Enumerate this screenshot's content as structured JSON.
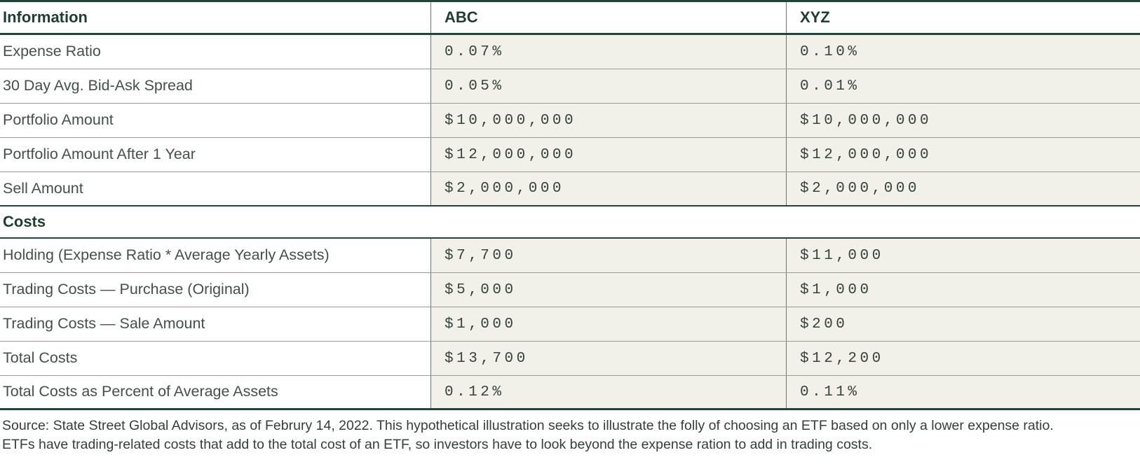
{
  "table": {
    "columns": [
      "Information",
      "ABC",
      "XYZ"
    ],
    "info_rows": [
      {
        "label": "Expense Ratio",
        "abc": "0.07%",
        "xyz": "0.10%"
      },
      {
        "label": "30 Day Avg. Bid-Ask Spread",
        "abc": "0.05%",
        "xyz": "0.01%"
      },
      {
        "label": "Portfolio Amount",
        "abc": "$10,000,000",
        "xyz": "$10,000,000"
      },
      {
        "label": "Portfolio Amount After 1 Year",
        "abc": "$12,000,000",
        "xyz": "$12,000,000"
      },
      {
        "label": "Sell Amount",
        "abc": "$2,000,000",
        "xyz": "$2,000,000"
      }
    ],
    "section_header": "Costs",
    "cost_rows": [
      {
        "label": "Holding (Expense Ratio * Average Yearly Assets)",
        "abc": "$7,700",
        "xyz": "$11,000"
      },
      {
        "label": "Trading Costs — Purchase (Original)",
        "abc": "$5,000",
        "xyz": "$1,000"
      },
      {
        "label": "Trading Costs — Sale Amount",
        "abc": "$1,000",
        "xyz": "$200"
      },
      {
        "label": "Total Costs",
        "abc": "$13,700",
        "xyz": "$12,200"
      },
      {
        "label": "Total Costs as Percent of Average Assets",
        "abc": "0.12%",
        "xyz": "0.11%"
      }
    ]
  },
  "footnote": {
    "line1": "Source: State Street Global Advisors, as of Februry 14, 2022. This hypothetical illustration seeks to illustrate the folly of choosing an ETF based on only a lower expense ratio.",
    "line2": "ETFs have trading-related costs that add to the total cost of an ETF, so investors have to look beyond the expense ration to add in trading costs."
  },
  "colors": {
    "dark_border": "#24433a",
    "header_text": "#1e3d33",
    "label_text": "#454f4a",
    "value_text": "#37423c",
    "cell_background": "#f1f1ea",
    "thin_divider": "#989c97",
    "vertical_divider": "#6b766f"
  }
}
